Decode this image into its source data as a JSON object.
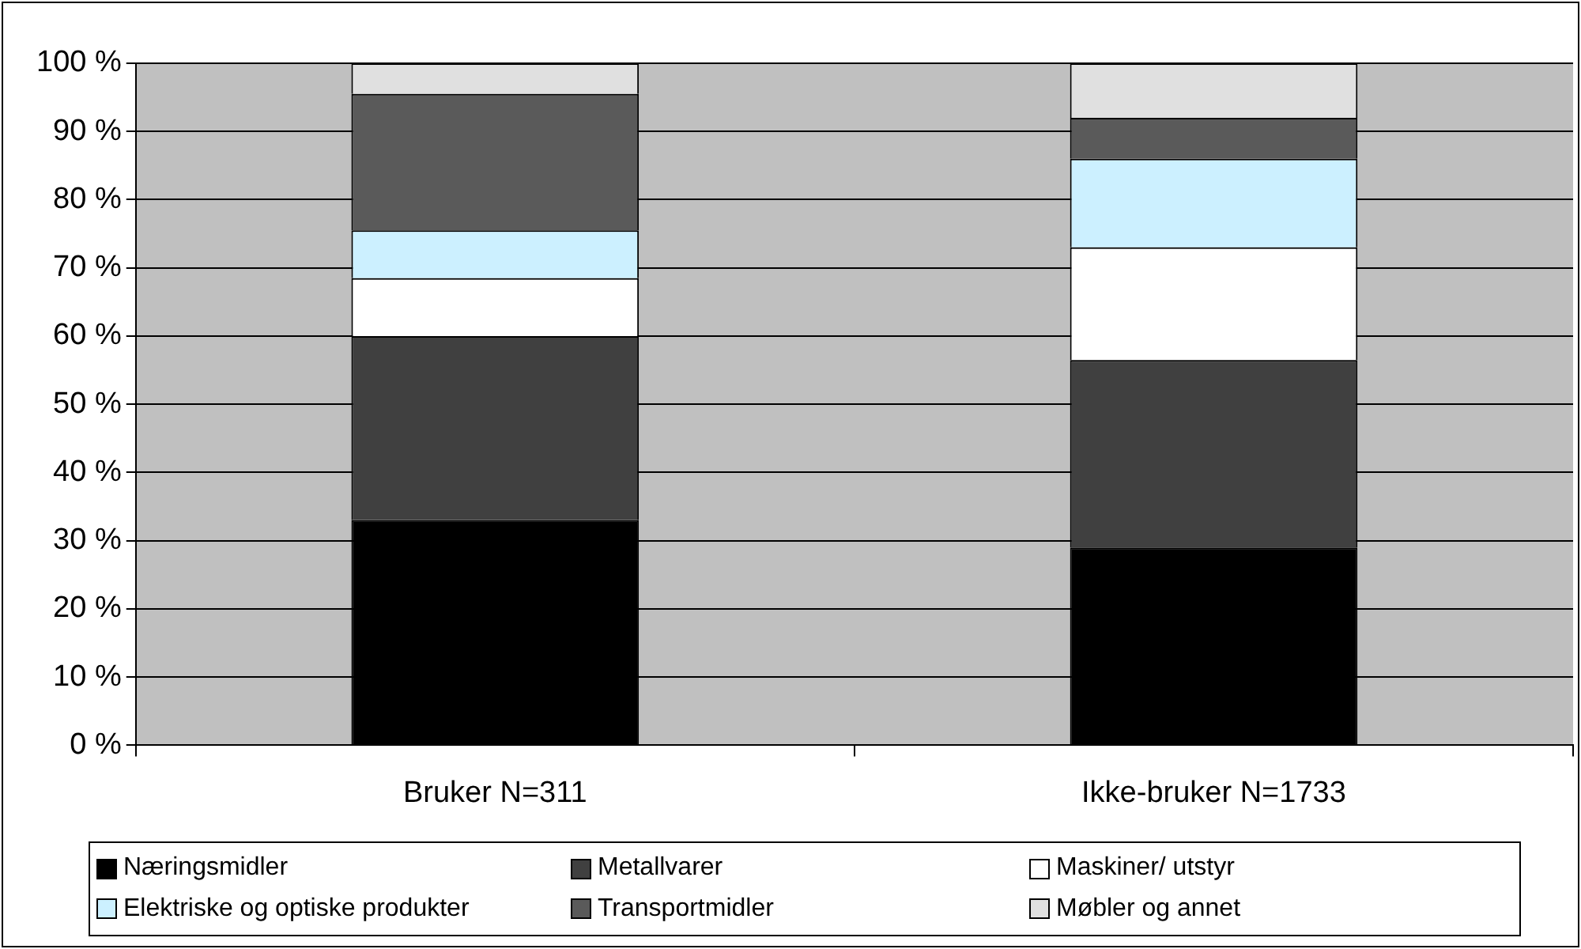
{
  "chart_data": {
    "type": "bar",
    "stacked": true,
    "categories": [
      "Bruker N=311",
      "Ikke-bruker N=1733"
    ],
    "series": [
      {
        "name": "Næringsmidler",
        "color": "#000000",
        "values": [
          33,
          29
        ]
      },
      {
        "name": "Metallvarer",
        "color": "#404040",
        "values": [
          27,
          27.5
        ]
      },
      {
        "name": "Maskiner/ utstyr",
        "color": "#ffffff",
        "values": [
          8.5,
          16.5
        ]
      },
      {
        "name": "Elektriske og optiske produkter",
        "color": "#ccf0ff",
        "values": [
          7,
          13
        ]
      },
      {
        "name": "Transportmidler",
        "color": "#5a5a5a",
        "values": [
          20,
          6
        ]
      },
      {
        "name": "Møbler og annet",
        "color": "#e0e0e0",
        "values": [
          4.5,
          8
        ]
      }
    ],
    "ylim": [
      0,
      100
    ],
    "yticks": [
      {
        "value": 0,
        "label": "0 %"
      },
      {
        "value": 10,
        "label": "10 %"
      },
      {
        "value": 20,
        "label": "20 %"
      },
      {
        "value": 30,
        "label": "30 %"
      },
      {
        "value": 40,
        "label": "40 %"
      },
      {
        "value": 50,
        "label": "50 %"
      },
      {
        "value": 60,
        "label": "60 %"
      },
      {
        "value": 70,
        "label": "70 %"
      },
      {
        "value": 80,
        "label": "80 %"
      },
      {
        "value": 90,
        "label": "90 %"
      },
      {
        "value": 100,
        "label": "100 %"
      }
    ],
    "grid": "y",
    "legend": "bottom"
  }
}
